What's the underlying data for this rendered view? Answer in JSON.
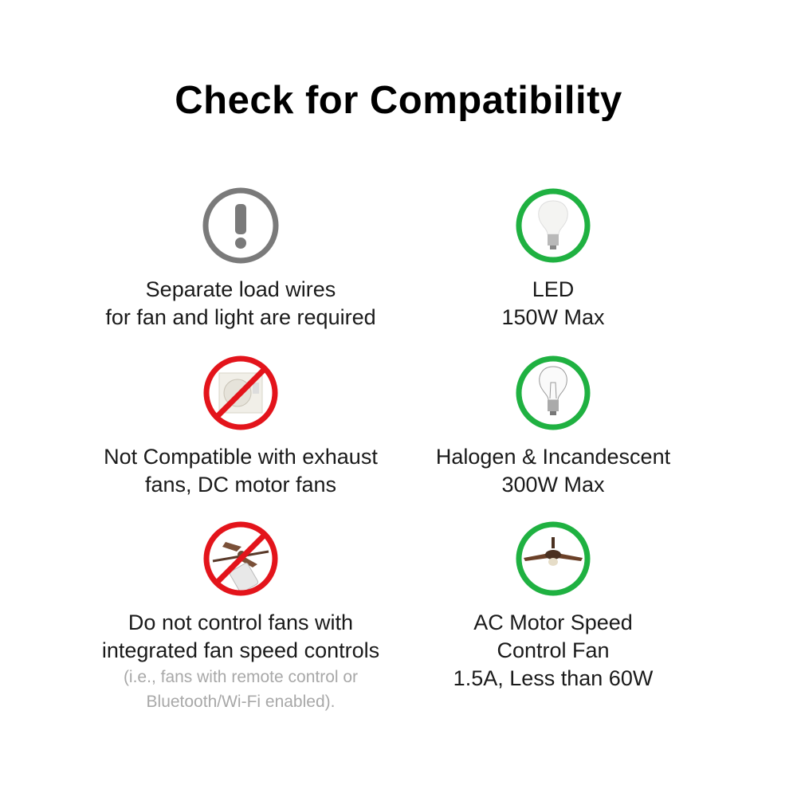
{
  "title": "Check for Compatibility",
  "colors": {
    "compatible": "#1fb141",
    "incompatible": "#e3141b",
    "notice": "#7a7a7a"
  },
  "left": [
    {
      "icon": "exclamation-icon",
      "lines": [
        "Separate load wires",
        "for fan and light are required"
      ]
    },
    {
      "icon": "no-exhaust-fan-icon",
      "lines": [
        "Not Compatible with exhaust",
        "fans, DC motor fans"
      ]
    },
    {
      "icon": "no-remote-fan-icon",
      "lines": [
        "Do not control fans with",
        "integrated fan speed controls"
      ],
      "note": [
        "(i.e., fans with remote control or",
        "Bluetooth/Wi-Fi enabled)."
      ]
    }
  ],
  "right": [
    {
      "icon": "led-bulb-icon",
      "lines": [
        "LED",
        "150W Max"
      ]
    },
    {
      "icon": "incandescent-bulb-icon",
      "lines": [
        "Halogen & Incandescent",
        "300W Max"
      ]
    },
    {
      "icon": "ceiling-fan-icon",
      "lines": [
        "AC Motor Speed",
        "Control Fan",
        "1.5A, Less than 60W"
      ]
    }
  ]
}
